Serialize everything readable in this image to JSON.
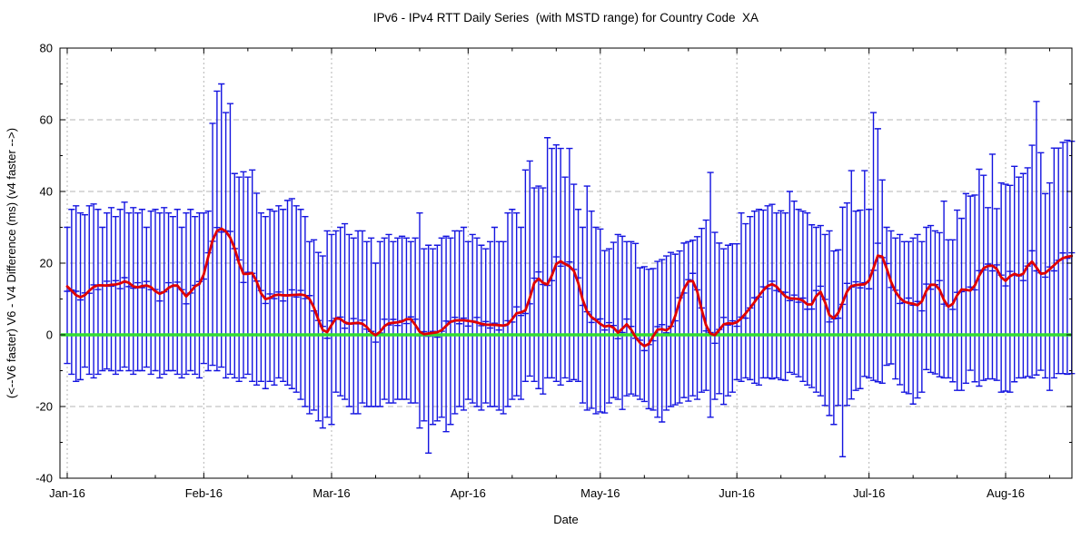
{
  "colors": {
    "bar": "#1414e0",
    "mean_line": "#e00000",
    "zero_line": "#33dd33",
    "grid": "#b5b5b5",
    "frame": "#000000",
    "background": "#ffffff"
  },
  "chart_data": {
    "type": "line",
    "title": "IPv6 - IPv4 RTT Daily Series  (with MSTD range) for Country Code  XA",
    "xlabel": "Date",
    "ylabel": "(<--V6 faster) V6 - V4 Difference (ms) (v4 faster -->)",
    "ylim": [
      -40,
      80
    ],
    "y_ticks": [
      -40,
      -20,
      0,
      20,
      40,
      60,
      80
    ],
    "y_minor_step": 10,
    "grid": true,
    "legend": "none",
    "x_tick_labels": [
      "Jan-16",
      "Feb-16",
      "Mar-16",
      "Apr-16",
      "May-16",
      "Jun-16",
      "Jul-16",
      "Aug-16"
    ],
    "month_days": [
      31,
      29,
      31,
      30,
      31,
      30,
      31,
      16
    ],
    "num_days": 229,
    "x_unit": "day",
    "series": [
      {
        "name": "daily MSTD range (error bars)",
        "style": "errorbar",
        "color": "#1414e0"
      },
      {
        "name": "daily mean (red line)",
        "style": "line",
        "color": "#e00000"
      },
      {
        "name": "zero baseline",
        "style": "hline",
        "y": 0,
        "color": "#33dd33"
      }
    ],
    "mean": [
      13.5,
      12.5,
      10.8,
      10.2,
      10.8,
      12.5,
      13.5,
      14,
      13.8,
      13.6,
      14,
      14.2,
      13.8,
      15.5,
      14.8,
      13,
      13.2,
      13.6,
      14,
      13.5,
      12.2,
      10.8,
      12,
      13.2,
      14,
      13.8,
      13.5,
      8.2,
      13,
      13.8,
      13.5,
      16,
      22,
      27,
      29.5,
      30,
      29,
      27.5,
      24.5,
      20,
      15.5,
      17,
      18.5,
      15,
      11,
      9.2,
      10.5,
      11,
      11.5,
      10.8,
      11,
      11.2,
      11,
      11.5,
      11,
      10.5,
      8,
      4,
      1,
      -0.5,
      3,
      5.5,
      4.5,
      3.2,
      3,
      3.2,
      3.5,
      3.2,
      2.5,
      0.5,
      -0.7,
      0.5,
      3,
      3.2,
      3.4,
      3.5,
      3.5,
      4.5,
      5,
      3,
      0.2,
      0,
      0.5,
      0.5,
      0.7,
      1,
      2.5,
      4,
      4,
      4,
      4.2,
      3.8,
      3.8,
      3.5,
      3,
      2.8,
      2.8,
      2.8,
      2.7,
      2.5,
      2.6,
      4,
      6.9,
      6.3,
      5.5,
      10,
      15.8,
      16.2,
      14.5,
      12.9,
      16,
      21.3,
      20.5,
      19.8,
      19,
      18.7,
      15,
      9.1,
      6,
      4.8,
      4.2,
      3.1,
      1.8,
      2.5,
      3.5,
      -1.5,
      2,
      4.4,
      1,
      -0.5,
      -2.4,
      -3.5,
      -3.2,
      -0.3,
      2.3,
      1.5,
      1,
      1.5,
      4.8,
      9.9,
      13,
      15.4,
      15.8,
      13,
      6.6,
      2,
      0.2,
      -1,
      1.5,
      3.5,
      3.2,
      3,
      3.3,
      4.5,
      6,
      7.5,
      9,
      11,
      12.5,
      13.8,
      14.5,
      13.7,
      12,
      10.5,
      10,
      10.2,
      10,
      9.8,
      8.5,
      7.2,
      11,
      14,
      9,
      4.5,
      4,
      6,
      8.5,
      13,
      13.8,
      13.9,
      14,
      14.1,
      14.2,
      18,
      24.2,
      22,
      19,
      14.1,
      12,
      10.1,
      9,
      8.9,
      8.7,
      8.4,
      7.6,
      13.7,
      14.1,
      14,
      13.8,
      9,
      7.2,
      8,
      11.4,
      13.4,
      12.4,
      12,
      13,
      17,
      19,
      19.3,
      19.2,
      19.5,
      15.3,
      14.1,
      16.8,
      17.6,
      16,
      16.5,
      19.2,
      22.1,
      18.3,
      16.4,
      17,
      18.5,
      19.2,
      20.8,
      21.5,
      21.8,
      22
    ],
    "high": [
      30,
      35,
      36,
      34,
      33.5,
      36,
      36.5,
      35,
      30,
      34,
      35.5,
      33,
      35,
      37,
      34,
      35.5,
      34,
      35,
      30,
      34.5,
      35,
      34,
      35.5,
      34,
      33,
      35,
      30,
      34,
      35,
      33,
      34,
      34,
      34.5,
      59,
      68,
      70,
      62,
      64.5,
      45,
      44,
      45.5,
      44,
      46,
      39.5,
      34,
      33,
      35,
      34.5,
      36,
      35,
      37.5,
      38,
      36,
      35,
      33,
      26,
      26.5,
      23,
      22,
      29,
      28,
      29,
      30,
      31,
      28,
      27,
      29,
      29,
      26,
      27,
      20,
      26,
      27,
      28,
      26,
      27,
      27.5,
      27,
      26,
      27,
      34,
      24,
      25,
      24,
      25,
      27,
      27.5,
      27,
      29,
      29,
      30,
      26,
      28,
      27,
      25,
      24,
      26,
      30,
      26,
      26,
      34,
      35,
      34,
      30,
      46,
      48.5,
      41,
      41.5,
      41,
      55,
      52,
      53,
      52,
      44,
      52,
      42,
      35,
      30,
      41.5,
      34.5,
      30,
      29.5,
      23.5,
      24,
      25.8,
      28,
      27.5,
      26,
      26,
      25.5,
      18.7,
      19,
      18.3,
      18.5,
      20.5,
      21,
      22,
      23,
      22.5,
      23.4,
      25.6,
      26,
      26.4,
      27.4,
      29.7,
      32,
      45.3,
      28.6,
      25.6,
      24,
      25,
      25.4,
      25.4,
      34,
      31,
      33,
      34.5,
      35,
      34.8,
      36,
      36.4,
      34,
      34.6,
      34,
      40,
      37.3,
      35,
      34.5,
      34,
      30.7,
      30,
      30.5,
      28,
      29,
      23.4,
      23.7,
      35.6,
      36.8,
      45.8,
      34.5,
      34.8,
      45.8,
      35,
      62,
      57.5,
      43.2,
      30,
      29,
      27,
      28,
      26,
      26,
      27,
      28,
      26,
      30,
      30.5,
      29,
      28.5,
      37.3,
      26.5,
      26.5,
      34.8,
      32.5,
      39.4,
      38.7,
      39,
      46.2,
      44.5,
      35.5,
      50.4,
      35.2,
      42.4,
      42,
      41.7,
      47,
      44,
      45,
      46.6,
      52.9,
      65.1,
      50.8,
      39.4,
      42.4,
      52.1,
      52.1,
      53.7,
      54.3,
      54
    ],
    "low": [
      -8,
      -11,
      -13,
      -12.5,
      -9,
      -11,
      -12,
      -11,
      -10,
      -9.5,
      -10,
      -11,
      -10,
      -9,
      -10,
      -11,
      -10,
      -10,
      -9,
      -11,
      -10,
      -12,
      -11,
      -10,
      -10,
      -11,
      -12,
      -11,
      -10,
      -11,
      -12,
      -8,
      -10,
      -8.5,
      -10,
      -9,
      -12,
      -11,
      -12,
      -13,
      -12,
      -11,
      -13,
      -14,
      -13,
      -15,
      -13,
      -14,
      -12,
      -13,
      -14,
      -15,
      -16,
      -18,
      -20,
      -22,
      -21,
      -24,
      -26,
      -23,
      -25,
      -16,
      -17,
      -18,
      -20,
      -22,
      -22,
      -19,
      -20,
      -20,
      -20,
      -20,
      -18,
      -19,
      -19,
      -18,
      -18,
      -18,
      -19,
      -19,
      -26,
      -24,
      -33,
      -25,
      -24,
      -23,
      -27,
      -25,
      -22,
      -20,
      -21,
      -18,
      -19,
      -20,
      -21,
      -19,
      -20,
      -20,
      -21,
      -22,
      -20,
      -18,
      -17,
      -18,
      -13,
      -11.5,
      -13,
      -15,
      -16.5,
      -12,
      -12,
      -13,
      -14,
      -12,
      -13,
      -12.5,
      -13,
      -19,
      -21,
      -20.5,
      -22,
      -21.5,
      -21.8,
      -19,
      -17.5,
      -18,
      -20.8,
      -17,
      -16.5,
      -17,
      -18,
      -18.6,
      -20.6,
      -21,
      -23,
      -24.3,
      -21,
      -20,
      -19.5,
      -19,
      -17.5,
      -18.5,
      -17,
      -18,
      -16,
      -15.5,
      -23,
      -18,
      -16.4,
      -19.4,
      -17,
      -16,
      -12.5,
      -13,
      -12,
      -12.5,
      -13.5,
      -14,
      -12,
      -12,
      -12.3,
      -12,
      -12.5,
      -12.7,
      -10.5,
      -11,
      -11.7,
      -13,
      -14,
      -14.7,
      -16,
      -17,
      -19.7,
      -22.5,
      -25,
      -19.7,
      -34,
      -19.7,
      -17.9,
      -15.5,
      -15,
      -11.6,
      -12,
      -12.7,
      -13.1,
      -13.5,
      -8.5,
      -8.1,
      -12.3,
      -13.9,
      -16,
      -16.4,
      -19.3,
      -17.6,
      -16,
      -9.7,
      -10.5,
      -10.9,
      -11.7,
      -12,
      -12,
      -13.1,
      -15.5,
      -15.5,
      -13.5,
      -9.9,
      -13.1,
      -14.3,
      -12.7,
      -12.3,
      -12.3,
      -12.7,
      -16,
      -15.7,
      -16,
      -13.1,
      -12,
      -12,
      -11.6,
      -12,
      -11.2,
      -9.9,
      -12,
      -15.5,
      -12,
      -10.8,
      -10.8,
      -11,
      -10.8
    ]
  }
}
